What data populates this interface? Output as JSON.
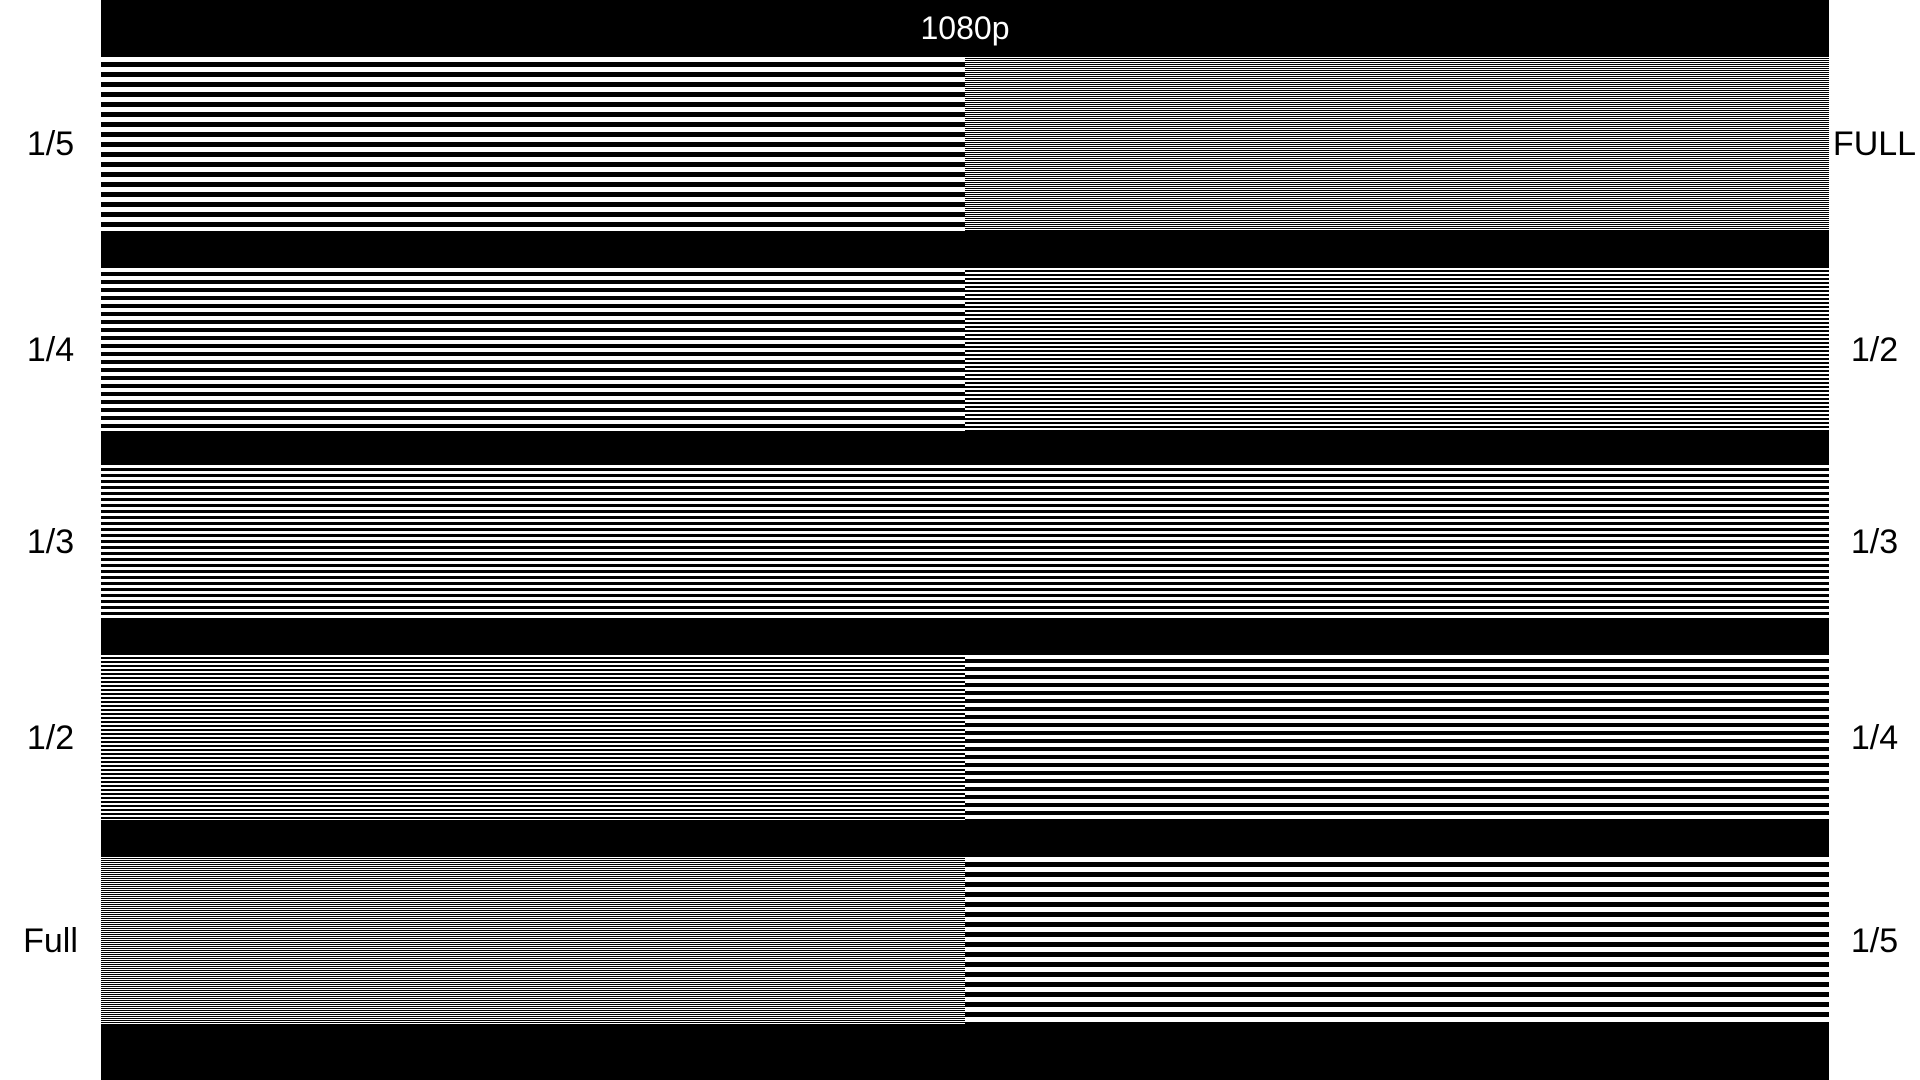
{
  "title": "1080p",
  "rows": [
    {
      "left": "1/5",
      "right": "FULL"
    },
    {
      "left": "1/4",
      "right": "1/2"
    },
    {
      "left": "1/3",
      "right": "1/3"
    },
    {
      "left": "1/2",
      "right": "1/4"
    },
    {
      "left": "Full",
      "right": "1/5"
    }
  ]
}
